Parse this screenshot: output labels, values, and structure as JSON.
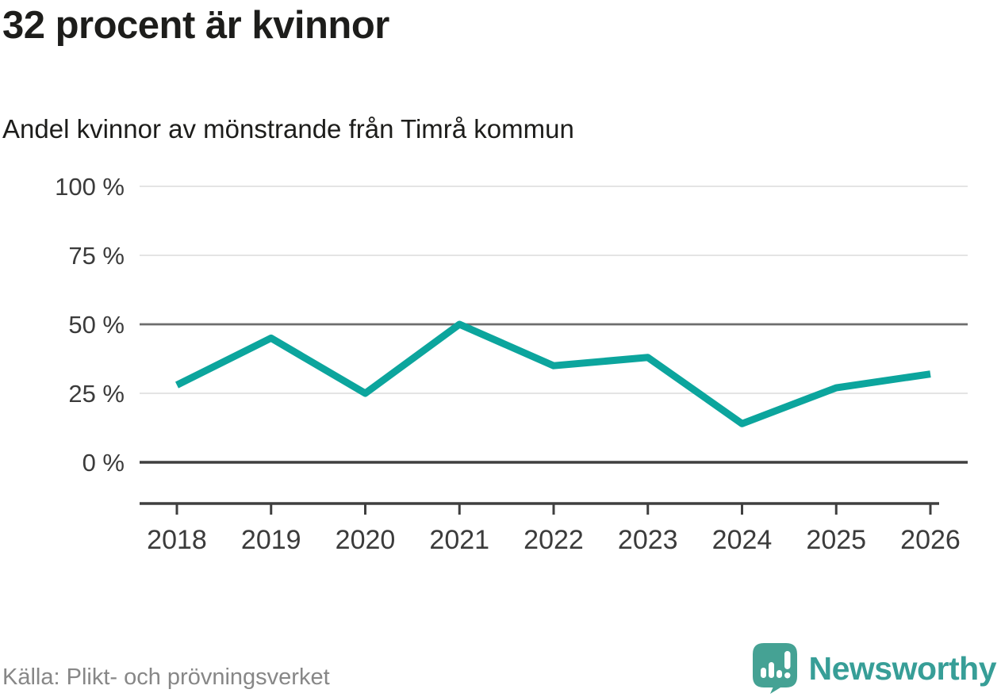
{
  "header": {
    "title": "32 procent är kvinnor",
    "subtitle": "Andel kvinnor av mönstrande från Timrå kommun"
  },
  "footer": {
    "source": "Källa: Plikt- och prövningsverket",
    "brand": "Newsworthy"
  },
  "icons": {
    "logo": "newsworthy-speech-bubble-barchart-icon"
  },
  "colors": {
    "line": "#0ca59d",
    "grid_light": "#e4e4e4",
    "grid_mid": "#6d6d6d",
    "axis": "#3f3f3f",
    "tick_text": "#3b3b3b",
    "title_text": "#1d1d1b",
    "source_text": "#878787",
    "brand_teal": "#379e97"
  },
  "chart_data": {
    "type": "line",
    "title": "32 procent är kvinnor",
    "subtitle": "Andel kvinnor av mönstrande från Timrå kommun",
    "x": [
      "2018",
      "2019",
      "2020",
      "2021",
      "2022",
      "2023",
      "2024",
      "2025",
      "2026"
    ],
    "series": [
      {
        "name": "Andel kvinnor av mönstrande, Timrå kommun",
        "values": [
          28,
          45,
          25,
          50,
          35,
          38,
          14,
          27,
          32
        ]
      }
    ],
    "unit": "%",
    "ylim": [
      0,
      100
    ],
    "yticks": [
      0,
      25,
      50,
      75,
      100
    ],
    "ytick_suffix": " %",
    "grid": true,
    "legend": "none",
    "emphasized_gridlines": [
      0,
      50
    ],
    "source": "Källa: Plikt- och prövningsverket"
  }
}
